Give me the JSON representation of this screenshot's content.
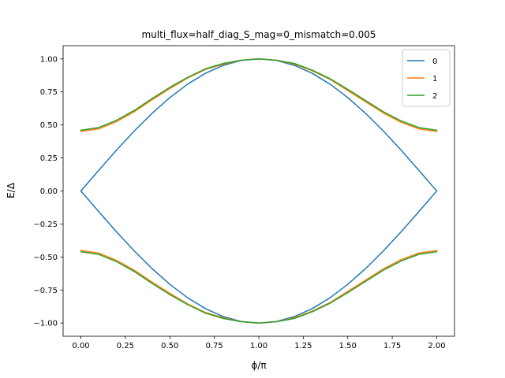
{
  "chart_data": {
    "type": "line",
    "title": "multi_flux=half_diag_S_mag=0_mismatch=0.005",
    "xlabel": "ϕ/π",
    "ylabel": "E/Δ",
    "xlim": [
      -0.1,
      2.1
    ],
    "ylim": [
      -1.1,
      1.1
    ],
    "xticks": [
      "0.00",
      "0.25",
      "0.50",
      "0.75",
      "1.00",
      "1.25",
      "1.50",
      "1.75",
      "2.00"
    ],
    "yticks": [
      "−1.00",
      "−0.75",
      "−0.50",
      "−0.25",
      "0.00",
      "0.25",
      "0.50",
      "0.75",
      "1.00"
    ],
    "legend_position": "top-right",
    "x": [
      0.0,
      0.1,
      0.2,
      0.3,
      0.4,
      0.5,
      0.6,
      0.7,
      0.8,
      0.9,
      1.0,
      1.1,
      1.2,
      1.3,
      1.4,
      1.5,
      1.6,
      1.7,
      1.8,
      1.9,
      2.0
    ],
    "series": [
      {
        "name": "0",
        "color": "#1f77b4",
        "branches": [
          [
            0.0,
            0.156,
            0.309,
            0.454,
            0.588,
            0.707,
            0.809,
            0.891,
            0.951,
            0.988,
            1.0,
            0.988,
            0.951,
            0.891,
            0.809,
            0.707,
            0.588,
            0.454,
            0.309,
            0.156,
            0.0
          ],
          [
            0.0,
            -0.156,
            -0.309,
            -0.454,
            -0.588,
            -0.707,
            -0.809,
            -0.891,
            -0.951,
            -0.988,
            -1.0,
            -0.988,
            -0.951,
            -0.891,
            -0.809,
            -0.707,
            -0.588,
            -0.454,
            -0.309,
            -0.156,
            0.0
          ]
        ]
      },
      {
        "name": "1",
        "color": "#ff7f0e",
        "branches": [
          [
            0.45,
            0.47,
            0.525,
            0.6,
            0.69,
            0.775,
            0.855,
            0.92,
            0.96,
            0.99,
            1.0,
            0.99,
            0.96,
            0.91,
            0.845,
            0.76,
            0.675,
            0.59,
            0.52,
            0.47,
            0.45
          ],
          [
            -0.45,
            -0.47,
            -0.525,
            -0.6,
            -0.69,
            -0.775,
            -0.855,
            -0.92,
            -0.96,
            -0.99,
            -1.0,
            -0.99,
            -0.96,
            -0.91,
            -0.845,
            -0.76,
            -0.675,
            -0.59,
            -0.52,
            -0.47,
            -0.45
          ]
        ]
      },
      {
        "name": "2",
        "color": "#2ca02c",
        "branches": [
          [
            0.46,
            0.48,
            0.535,
            0.61,
            0.7,
            0.785,
            0.86,
            0.925,
            0.965,
            0.99,
            1.0,
            0.99,
            0.965,
            0.915,
            0.85,
            0.77,
            0.685,
            0.6,
            0.53,
            0.48,
            0.46
          ],
          [
            -0.46,
            -0.48,
            -0.535,
            -0.61,
            -0.7,
            -0.785,
            -0.86,
            -0.925,
            -0.965,
            -0.99,
            -1.0,
            -0.99,
            -0.965,
            -0.915,
            -0.85,
            -0.77,
            -0.685,
            -0.6,
            -0.53,
            -0.48,
            -0.46
          ]
        ]
      }
    ]
  }
}
